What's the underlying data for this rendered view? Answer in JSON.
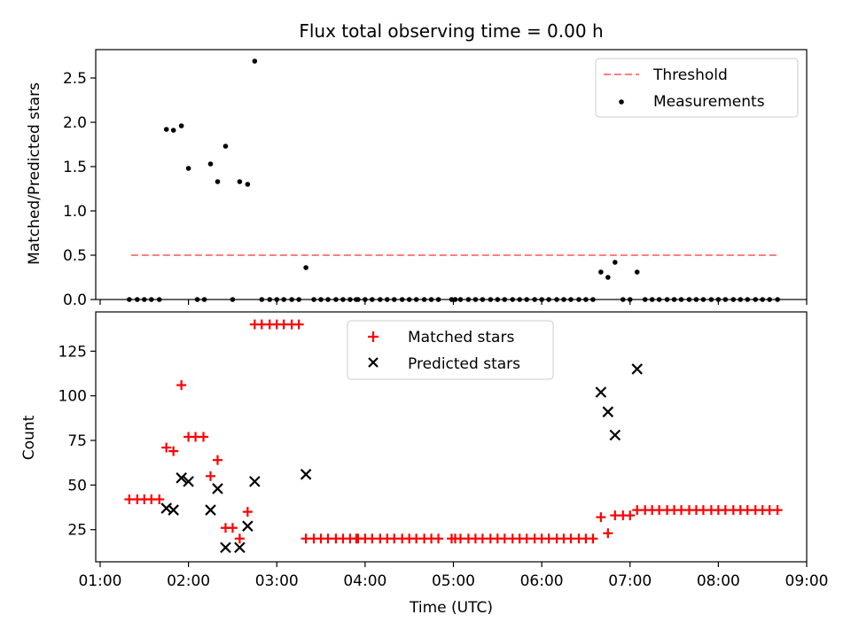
{
  "figure": {
    "title": "Flux total observing time = 0.00 h"
  },
  "chart_data": [
    {
      "type": "scatter",
      "panel": "top",
      "title": "Flux total observing time = 0.00 h",
      "xlabel": "",
      "ylabel": "Matched/Predicted stars",
      "xlim_hours": [
        0.95,
        9.0
      ],
      "ylim": [
        0,
        2.82
      ],
      "yticks": [
        0.0,
        0.5,
        1.0,
        1.5,
        2.0,
        2.5
      ],
      "yticklabels": [
        "0.0",
        "0.5",
        "1.0",
        "1.5",
        "2.0",
        "2.5"
      ],
      "xticks_hours": [
        1,
        2,
        3,
        4,
        5,
        6,
        7,
        8,
        9
      ],
      "legend_position": "top-right",
      "legend": {
        "threshold": "Threshold",
        "measurements": "Measurements"
      },
      "threshold": {
        "name": "Threshold",
        "color": "#ff7f7f",
        "style": "dashed",
        "x": [
          1.35,
          8.67
        ],
        "y": 0.5
      },
      "series": [
        {
          "name": "Measurements",
          "color": "#000000",
          "marker": "dot",
          "x": [
            1.33,
            1.42,
            1.5,
            1.58,
            1.67,
            1.75,
            1.83,
            1.92,
            2.0,
            2.1,
            2.18,
            2.25,
            2.33,
            2.42,
            2.5,
            2.58,
            2.67,
            2.75,
            2.83,
            2.92,
            3.0,
            3.08,
            3.17,
            3.25,
            3.33,
            3.42,
            3.5,
            3.58,
            3.67,
            3.75,
            3.83,
            3.9,
            3.92,
            4.0,
            4.08,
            4.17,
            4.25,
            4.33,
            4.42,
            4.5,
            4.58,
            4.67,
            4.75,
            4.83,
            4.98,
            5.02,
            5.08,
            5.17,
            5.25,
            5.33,
            5.42,
            5.5,
            5.58,
            5.67,
            5.75,
            5.83,
            5.92,
            6.0,
            6.08,
            6.17,
            6.25,
            6.33,
            6.42,
            6.5,
            6.58,
            6.67,
            6.75,
            6.83,
            6.92,
            7.0,
            7.08,
            7.17,
            7.25,
            7.33,
            7.42,
            7.5,
            7.58,
            7.67,
            7.75,
            7.83,
            7.92,
            8.0,
            8.08,
            8.17,
            8.25,
            8.33,
            8.42,
            8.5,
            8.58,
            8.67
          ],
          "y": [
            0,
            0,
            0,
            0,
            0,
            1.92,
            1.91,
            1.96,
            1.48,
            0,
            0,
            1.53,
            1.33,
            1.73,
            0,
            1.33,
            1.3,
            2.69,
            0,
            0,
            0,
            0,
            0,
            0,
            0.36,
            0,
            0,
            0,
            0,
            0,
            0,
            0,
            0,
            0,
            0,
            0,
            0,
            0,
            0,
            0,
            0,
            0,
            0,
            0,
            0,
            0,
            0,
            0,
            0,
            0,
            0,
            0,
            0,
            0,
            0,
            0,
            0,
            0,
            0,
            0,
            0,
            0,
            0,
            0,
            0,
            0.31,
            0.25,
            0.42,
            0,
            0,
            0.31,
            0,
            0,
            0,
            0,
            0,
            0,
            0,
            0,
            0,
            0,
            0,
            0,
            0,
            0,
            0,
            0,
            0,
            0,
            0
          ]
        }
      ]
    },
    {
      "type": "scatter",
      "panel": "bottom",
      "title": "",
      "xlabel": "Time (UTC)",
      "ylabel": "Count",
      "xlim_hours": [
        0.95,
        9.0
      ],
      "ylim": [
        7,
        147
      ],
      "yticks": [
        25,
        50,
        75,
        100,
        125
      ],
      "yticklabels": [
        "25",
        "50",
        "75",
        "100",
        "125"
      ],
      "xticks_hours": [
        1,
        2,
        3,
        4,
        5,
        6,
        7,
        8,
        9
      ],
      "xticklabels": [
        "01:00",
        "02:00",
        "03:00",
        "04:00",
        "05:00",
        "06:00",
        "07:00",
        "08:00",
        "09:00"
      ],
      "legend_position": "top-center",
      "series": [
        {
          "name": "Matched stars",
          "color": "#ff0000",
          "marker": "plus",
          "x": [
            1.33,
            1.42,
            1.5,
            1.58,
            1.67,
            1.75,
            1.83,
            1.92,
            2.0,
            2.08,
            2.17,
            2.25,
            2.33,
            2.42,
            2.5,
            2.58,
            2.67,
            2.75,
            2.83,
            2.92,
            3.0,
            3.08,
            3.17,
            3.25,
            3.33,
            3.42,
            3.5,
            3.58,
            3.67,
            3.75,
            3.83,
            3.9,
            3.92,
            4.0,
            4.08,
            4.17,
            4.25,
            4.33,
            4.42,
            4.5,
            4.58,
            4.67,
            4.75,
            4.83,
            4.98,
            5.02,
            5.08,
            5.17,
            5.25,
            5.33,
            5.42,
            5.5,
            5.58,
            5.67,
            5.75,
            5.83,
            5.92,
            6.0,
            6.08,
            6.17,
            6.25,
            6.33,
            6.42,
            6.5,
            6.58,
            6.67,
            6.75,
            6.83,
            6.92,
            7.0,
            7.08,
            7.17,
            7.25,
            7.33,
            7.42,
            7.5,
            7.58,
            7.67,
            7.75,
            7.83,
            7.92,
            8.0,
            8.08,
            8.17,
            8.25,
            8.33,
            8.42,
            8.5,
            8.58,
            8.67
          ],
          "y": [
            42,
            42,
            42,
            42,
            42,
            71,
            69,
            106,
            77,
            77,
            77,
            55,
            64,
            26,
            26,
            20,
            35,
            140,
            140,
            140,
            140,
            140,
            140,
            140,
            20,
            20,
            20,
            20,
            20,
            20,
            20,
            20,
            20,
            20,
            20,
            20,
            20,
            20,
            20,
            20,
            20,
            20,
            20,
            20,
            20,
            20,
            20,
            20,
            20,
            20,
            20,
            20,
            20,
            20,
            20,
            20,
            20,
            20,
            20,
            20,
            20,
            20,
            20,
            20,
            20,
            32,
            23,
            33,
            33,
            33,
            36,
            36,
            36,
            36,
            36,
            36,
            36,
            36,
            36,
            36,
            36,
            36,
            36,
            36,
            36,
            36,
            36,
            36,
            36,
            36
          ]
        },
        {
          "name": "Predicted stars",
          "color": "#000000",
          "marker": "x",
          "x": [
            1.75,
            1.83,
            1.92,
            2.0,
            2.25,
            2.33,
            2.42,
            2.58,
            2.67,
            2.75,
            3.33,
            6.67,
            6.75,
            6.83,
            7.08
          ],
          "y": [
            37,
            36,
            54,
            52,
            36,
            48,
            15,
            15,
            27,
            52,
            56,
            102,
            91,
            78,
            115
          ]
        }
      ]
    }
  ]
}
